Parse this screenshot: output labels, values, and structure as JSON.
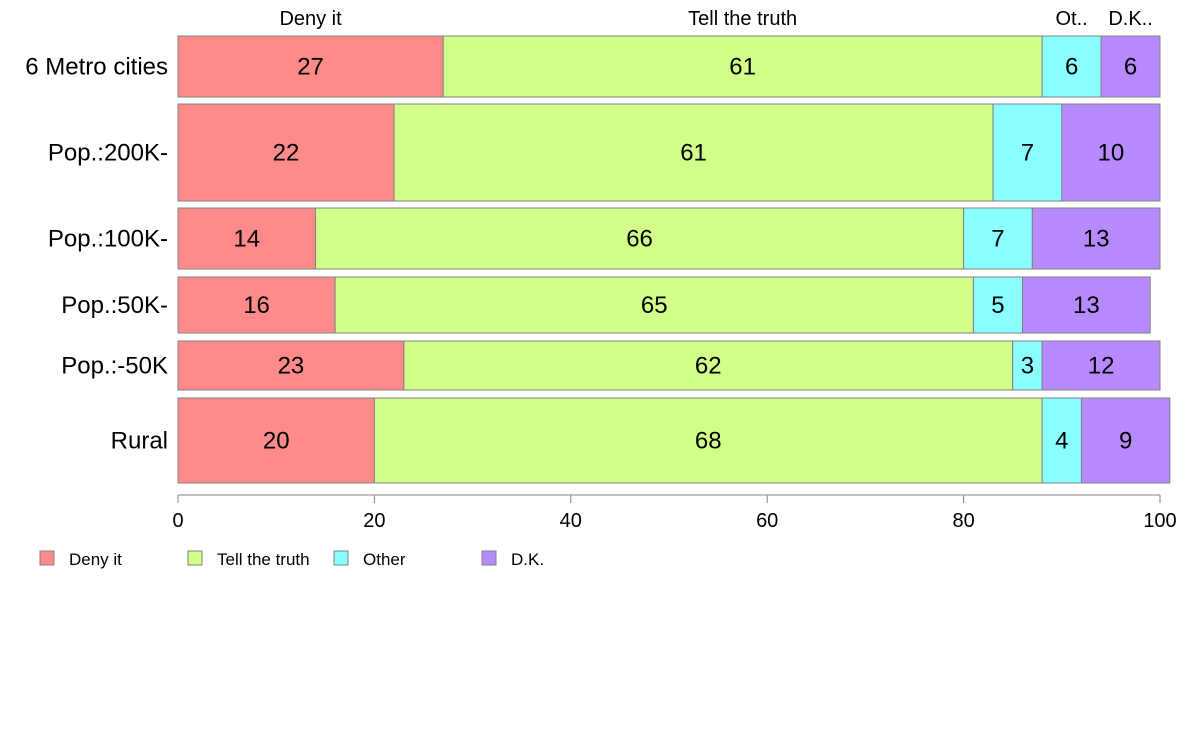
{
  "chart_data": {
    "type": "bar",
    "orientation": "horizontal",
    "stacked": true,
    "categories": [
      "6 Metro cities",
      "Pop.:200K-",
      "Pop.:100K-",
      "Pop.:50K-",
      "Pop.:-50K",
      "Rural"
    ],
    "series": [
      {
        "name": "Deny it",
        "color": "#ff8a8a",
        "values": [
          27,
          22,
          14,
          16,
          23,
          20
        ]
      },
      {
        "name": "Tell the truth",
        "color": "#d1ff8a",
        "values": [
          61,
          61,
          66,
          65,
          62,
          68
        ]
      },
      {
        "name": "Other",
        "color": "#8affff",
        "values": [
          6,
          7,
          7,
          5,
          3,
          4
        ]
      },
      {
        "name": "D.K.",
        "color": "#b88aff",
        "values": [
          6,
          10,
          13,
          13,
          12,
          9
        ]
      }
    ],
    "data_labels": [
      [
        "27",
        "61",
        "6",
        "6"
      ],
      [
        "22",
        "61",
        "7",
        "10"
      ],
      [
        "14",
        "66",
        "7",
        "13"
      ],
      [
        "16",
        "65",
        "5",
        "13"
      ],
      [
        "23",
        "62",
        "3",
        "12"
      ],
      [
        "20",
        "68",
        "4",
        "9"
      ]
    ],
    "top_labels": [
      "Deny it",
      "Tell the truth",
      "Ot..",
      "D.K.."
    ],
    "xlim": [
      0,
      100
    ],
    "xticks": [
      "0",
      "20",
      "40",
      "60",
      "80",
      "100"
    ],
    "legend_position": "bottom-left",
    "grid": false
  }
}
